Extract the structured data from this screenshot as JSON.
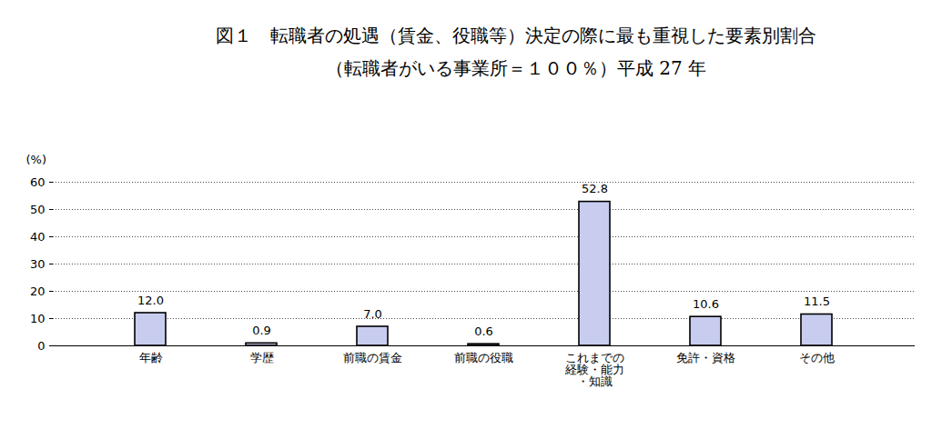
{
  "chart_data": {
    "type": "bar",
    "title": "図１　転職者の処遇（賃金、役職等）決定の際に最も重視した要素別割合",
    "subtitle": "（転職者がいる事業所＝１００％）平成 27 年",
    "ylabel": "(%)",
    "categories": [
      "年齢",
      "学歴",
      "前職の賃金",
      "前職の役職",
      "これまでの\n経験・能力\n・知識",
      "免許・資格",
      "その他"
    ],
    "values": [
      12.0,
      0.9,
      7.0,
      0.6,
      52.8,
      10.6,
      11.5
    ],
    "value_labels": [
      "12.0",
      "0.9",
      "7.0",
      "0.6",
      "52.8",
      "10.6",
      "11.5"
    ],
    "data_labels": true,
    "color": "#c8cdf0",
    "ylim": [
      0,
      60
    ],
    "yticks": [
      0,
      10,
      20,
      30,
      40,
      50,
      60
    ],
    "grid": true
  }
}
